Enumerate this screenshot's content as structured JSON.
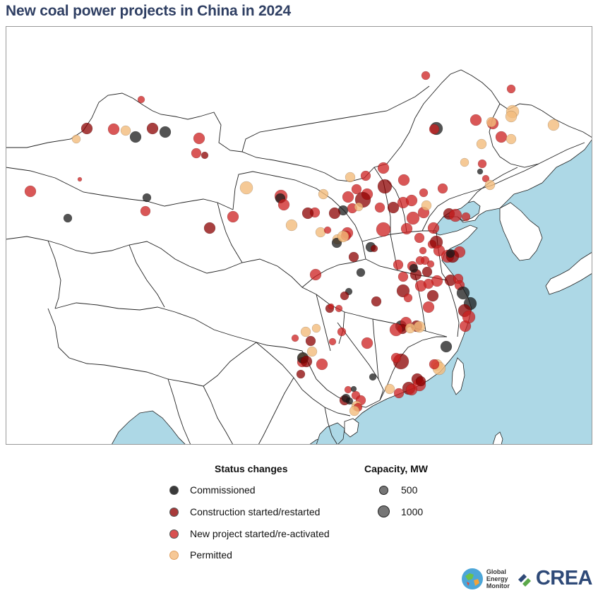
{
  "title": "New coal power projects in China in 2024",
  "colors": {
    "sea": "#add8e6",
    "land": "#ffffff",
    "border": "#222222",
    "commissioned": "#1a1a1a",
    "construction": "#8b0000",
    "new_project": "#cc1f1f",
    "permitted": "#f3bb7c",
    "title": "#2f3f63"
  },
  "legend": {
    "status_title": "Status changes",
    "capacity_title": "Capacity, MW",
    "status_items": [
      {
        "label": "Commissioned",
        "color": "#3a3a3a"
      },
      {
        "label": "Construction started/restarted",
        "color": "#a83a3a"
      },
      {
        "label": "New project started/re-activated",
        "color": "#d85050"
      },
      {
        "label": "Permitted",
        "color": "#f6c896"
      }
    ],
    "capacity_items": [
      {
        "label": "500",
        "value": 500
      },
      {
        "label": "1000",
        "value": 1000
      }
    ]
  },
  "logos": {
    "gem_line1": "Global",
    "gem_line2": "Energy",
    "gem_line3": "Monitor",
    "crea": "CREA"
  }
}
